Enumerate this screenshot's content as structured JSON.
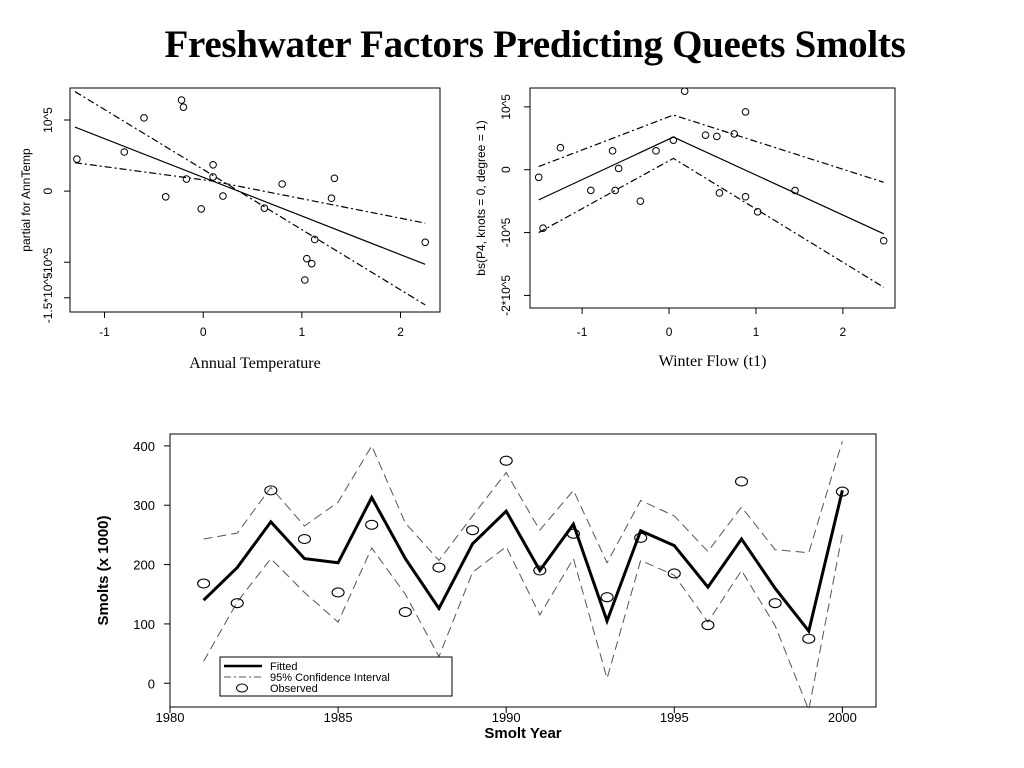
{
  "title": "Freshwater Factors Predicting Queets Smolts",
  "chart_data": [
    {
      "type": "scatter",
      "xlabel": "Annual Temperature",
      "ylabel": "partial for AnnTemp",
      "xlim": [
        -1.35,
        2.4
      ],
      "ylim": [
        -1.7,
        1.45
      ],
      "xticks": [
        -1,
        0,
        1,
        2
      ],
      "xtick_labels": [
        "-1",
        "0",
        "1",
        "2"
      ],
      "yticks": [
        -1.5,
        -1,
        0,
        1
      ],
      "ytick_labels": [
        "-1.5*10^5",
        "-10^5",
        "0",
        "10^5"
      ],
      "points": [
        [
          -1.28,
          0.45
        ],
        [
          -0.8,
          0.55
        ],
        [
          -0.6,
          1.03
        ],
        [
          -0.38,
          -0.08
        ],
        [
          -0.22,
          1.28
        ],
        [
          -0.2,
          1.18
        ],
        [
          -0.17,
          0.17
        ],
        [
          -0.02,
          -0.25
        ],
        [
          0.1,
          0.37
        ],
        [
          0.1,
          0.2
        ],
        [
          0.2,
          -0.07
        ],
        [
          0.62,
          -0.24
        ],
        [
          0.8,
          0.1
        ],
        [
          1.03,
          -1.25
        ],
        [
          1.05,
          -0.95
        ],
        [
          1.1,
          -1.02
        ],
        [
          1.13,
          -0.68
        ],
        [
          1.3,
          -0.1
        ],
        [
          1.33,
          0.18
        ],
        [
          2.25,
          -0.72
        ]
      ],
      "series": [
        {
          "line": "solid",
          "x": [
            -1.3,
            2.25
          ],
          "y": [
            0.9,
            -1.03
          ]
        },
        {
          "line": "dashdot",
          "x": [
            -1.3,
            0.1,
            2.25
          ],
          "y": [
            1.4,
            0.22,
            -1.6
          ]
        },
        {
          "line": "dashdot",
          "x": [
            -1.3,
            0.1,
            2.25
          ],
          "y": [
            0.4,
            0.14,
            -0.45
          ]
        }
      ]
    },
    {
      "type": "scatter",
      "xlabel": "Winter Flow (t1)",
      "ylabel": "bs(P4, knots = 0, degree = 1)",
      "xlim": [
        -1.6,
        2.6
      ],
      "ylim": [
        -2.2,
        1.3
      ],
      "xticks": [
        -1,
        0,
        1,
        2
      ],
      "xtick_labels": [
        "-1",
        "0",
        "1",
        "2"
      ],
      "yticks": [
        -2,
        -1,
        0,
        1
      ],
      "ytick_labels": [
        "-2*10^5",
        "-10^5",
        "0",
        "10^5"
      ],
      "points": [
        [
          -1.5,
          -0.12
        ],
        [
          -1.45,
          -0.93
        ],
        [
          -1.25,
          0.35
        ],
        [
          -0.9,
          -0.33
        ],
        [
          -0.65,
          0.3
        ],
        [
          -0.62,
          -0.33
        ],
        [
          -0.58,
          0.02
        ],
        [
          -0.33,
          -0.5
        ],
        [
          -0.15,
          0.3
        ],
        [
          0.05,
          0.47
        ],
        [
          0.18,
          1.25
        ],
        [
          0.42,
          0.55
        ],
        [
          0.55,
          0.53
        ],
        [
          0.58,
          -0.37
        ],
        [
          0.75,
          0.57
        ],
        [
          0.88,
          0.92
        ],
        [
          0.88,
          -0.43
        ],
        [
          1.02,
          -0.67
        ],
        [
          1.45,
          -0.33
        ],
        [
          2.47,
          -1.13
        ]
      ],
      "series": [
        {
          "line": "solid",
          "x": [
            -1.5,
            0.05,
            2.47
          ],
          "y": [
            -0.48,
            0.52,
            -1.02
          ]
        },
        {
          "line": "dashdot",
          "x": [
            -1.5,
            0.05,
            2.47
          ],
          "y": [
            0.05,
            0.87,
            -0.2
          ]
        },
        {
          "line": "dashdot",
          "x": [
            -1.5,
            0.05,
            2.47
          ],
          "y": [
            -1.0,
            0.18,
            -1.87
          ]
        }
      ]
    },
    {
      "type": "line",
      "xlabel": "Smolt Year",
      "ylabel": "Smolts (x 1000)",
      "xlim": [
        1980,
        2001
      ],
      "ylim": [
        -40,
        420
      ],
      "xticks": [
        1980,
        1985,
        1990,
        1995,
        2000
      ],
      "xtick_labels": [
        "1980",
        "1985",
        "1990",
        "1995",
        "2000"
      ],
      "yticks": [
        0,
        100,
        200,
        300,
        400
      ],
      "ytick_labels": [
        "0",
        "100",
        "200",
        "300",
        "400"
      ],
      "x": [
        1981,
        1982,
        1983,
        1984,
        1985,
        1986,
        1987,
        1988,
        1989,
        1990,
        1991,
        1992,
        1993,
        1994,
        1995,
        1996,
        1997,
        1998,
        1999,
        2000
      ],
      "series": [
        {
          "name": "Fitted",
          "line": "solid",
          "values": [
            140,
            195,
            272,
            210,
            203,
            313,
            210,
            126,
            235,
            290,
            190,
            268,
            105,
            257,
            232,
            162,
            243,
            160,
            88,
            325
          ]
        },
        {
          "name": "95% Confidence Interval",
          "line": "dashed",
          "values": [
            243,
            253,
            330,
            265,
            305,
            400,
            270,
            207,
            282,
            355,
            258,
            325,
            203,
            308,
            282,
            222,
            297,
            225,
            220,
            408
          ]
        },
        {
          "line": "dashed",
          "values": [
            37,
            137,
            210,
            153,
            103,
            228,
            150,
            45,
            187,
            230,
            115,
            210,
            8,
            207,
            182,
            103,
            190,
            97,
            -45,
            252
          ]
        },
        {
          "name": "Observed",
          "line": "none",
          "marker": "circle",
          "values": [
            168,
            135,
            325,
            243,
            153,
            267,
            120,
            195,
            258,
            375,
            190,
            252,
            145,
            245,
            185,
            98,
            340,
            135,
            75,
            323
          ]
        }
      ],
      "legend": "bottom-left"
    }
  ]
}
